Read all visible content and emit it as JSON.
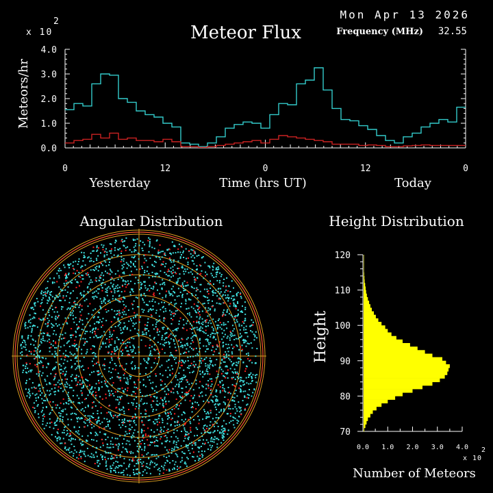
{
  "header": {
    "date": "Mon Apr 13 2026",
    "frequency_label": "Frequency (MHz)",
    "frequency_value": "32.55"
  },
  "colors": {
    "background": "#000000",
    "axis": "#ffffff",
    "total_series": "#33cccc",
    "sporadic_series": "#cc2222",
    "rings": "#e0a020",
    "outer_ring": "#ff5533",
    "crosshair": "#e0a020",
    "histogram": "#ffff00",
    "total_points": "#40e0e0",
    "red_points": "#ff2020"
  },
  "chart_data": [
    {
      "type": "line",
      "step": true,
      "title": "Meteor Flux",
      "ylabel": "Meteors/hr",
      "multiplier_label": "x 10",
      "multiplier_exp": "2",
      "ylim": [
        0,
        4.0
      ],
      "yticks": [
        "0.0",
        "1.0",
        "2.0",
        "3.0",
        "4.0"
      ],
      "xlim": [
        0,
        48
      ],
      "xticks": [
        {
          "value": 0,
          "label": "0"
        },
        {
          "value": 12,
          "label": "12"
        },
        {
          "value": 24,
          "label": "0"
        },
        {
          "value": 36,
          "label": "12"
        },
        {
          "value": 48,
          "label": "0"
        }
      ],
      "xlabel": "Time (hrs UT)",
      "day_labels": [
        "Yesterday",
        "Today"
      ],
      "series": [
        {
          "values": [
            1.55,
            1.8,
            1.7,
            2.6,
            3.0,
            2.95,
            2.0,
            1.85,
            1.5,
            1.35,
            1.25,
            1.0,
            0.85,
            0.2,
            0.15,
            0.05,
            0.2,
            0.45,
            0.8,
            0.95,
            1.05,
            1.0,
            0.8,
            1.35,
            1.8,
            1.75,
            2.6,
            2.75,
            3.25,
            2.35,
            1.6,
            1.15,
            1.1,
            0.9,
            0.75,
            0.5,
            0.3,
            0.2,
            0.45,
            0.6,
            0.85,
            1.0,
            1.15,
            1.05,
            1.65
          ]
        },
        {
          "values": [
            0.2,
            0.3,
            0.35,
            0.55,
            0.4,
            0.6,
            0.35,
            0.4,
            0.3,
            0.3,
            0.25,
            0.35,
            0.25,
            0.05,
            0.05,
            0.02,
            0.05,
            0.1,
            0.15,
            0.2,
            0.25,
            0.3,
            0.2,
            0.35,
            0.5,
            0.45,
            0.4,
            0.35,
            0.3,
            0.25,
            0.15,
            0.15,
            0.15,
            0.1,
            0.12,
            0.1,
            0.05,
            0.05,
            0.08,
            0.1,
            0.12,
            0.1,
            0.1,
            0.1,
            0.1
          ]
        }
      ]
    },
    {
      "type": "scatter",
      "title": "Angular Distribution",
      "rings": 6
    },
    {
      "type": "bar",
      "orientation": "horizontal",
      "title": "Height Distribution",
      "ylabel": "Height",
      "xlabel": "Number of Meteors",
      "multiplier_label": "x 10",
      "multiplier_exp": "2",
      "xlim": [
        0,
        4.0
      ],
      "xticks": [
        "0.0",
        "1.0",
        "2.0",
        "3.0",
        "4.0"
      ],
      "ylim": [
        70,
        120
      ],
      "yticks": [
        "70",
        "80",
        "90",
        "100",
        "110",
        "120"
      ],
      "bins": [
        [
          70,
          0.05
        ],
        [
          71,
          0.1
        ],
        [
          72,
          0.15
        ],
        [
          73,
          0.2
        ],
        [
          74,
          0.3
        ],
        [
          75,
          0.4
        ],
        [
          76,
          0.55
        ],
        [
          77,
          0.75
        ],
        [
          78,
          1.0
        ],
        [
          79,
          1.3
        ],
        [
          80,
          1.6
        ],
        [
          81,
          2.0
        ],
        [
          82,
          2.4
        ],
        [
          83,
          2.8
        ],
        [
          84,
          3.1
        ],
        [
          85,
          3.3
        ],
        [
          86,
          3.4
        ],
        [
          87,
          3.45
        ],
        [
          88,
          3.5
        ],
        [
          89,
          3.35
        ],
        [
          90,
          3.2
        ],
        [
          91,
          2.8
        ],
        [
          92,
          2.5
        ],
        [
          93,
          2.2
        ],
        [
          94,
          1.9
        ],
        [
          95,
          1.6
        ],
        [
          96,
          1.35
        ],
        [
          97,
          1.15
        ],
        [
          98,
          1.0
        ],
        [
          99,
          0.9
        ],
        [
          100,
          0.75
        ],
        [
          101,
          0.62
        ],
        [
          102,
          0.52
        ],
        [
          103,
          0.44
        ],
        [
          104,
          0.36
        ],
        [
          105,
          0.3
        ],
        [
          106,
          0.25
        ],
        [
          107,
          0.2
        ],
        [
          108,
          0.16
        ],
        [
          109,
          0.13
        ],
        [
          110,
          0.11
        ],
        [
          111,
          0.09
        ],
        [
          112,
          0.07
        ],
        [
          113,
          0.06
        ],
        [
          114,
          0.05
        ],
        [
          115,
          0.04
        ],
        [
          116,
          0.03
        ],
        [
          117,
          0.03
        ],
        [
          118,
          0.02
        ],
        [
          119,
          0.02
        ]
      ]
    }
  ]
}
